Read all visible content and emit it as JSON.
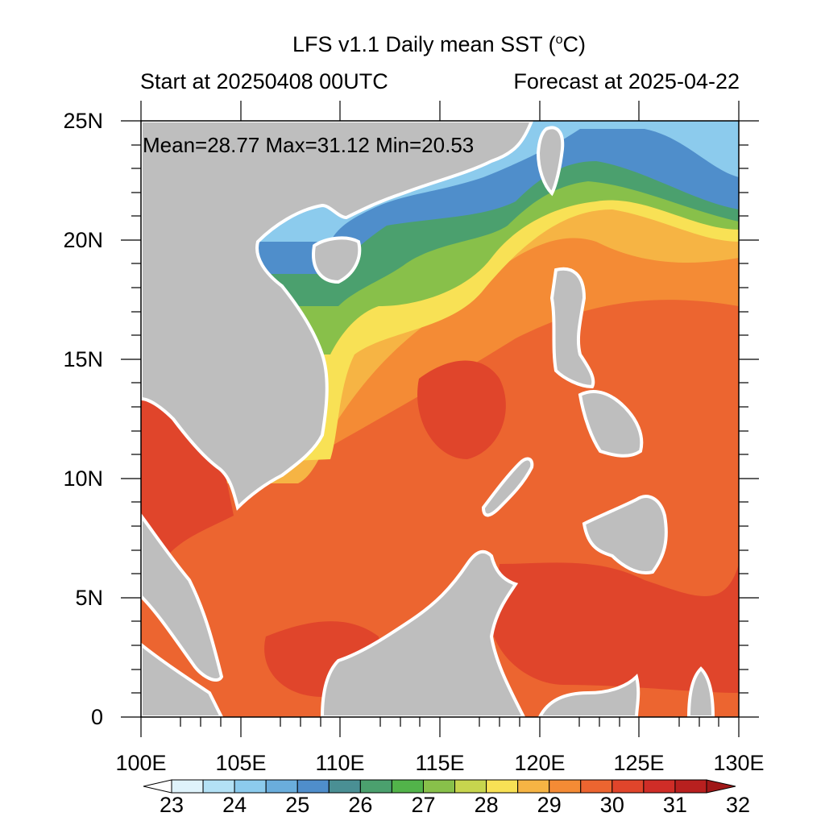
{
  "title_main": "LFS v1.1 Daily mean SST (",
  "title_deg": "o",
  "title_unit": "C)",
  "start_label": "Start at 20250408 00UTC",
  "forecast_label": "Forecast at 2025-04-22",
  "stats": "Mean=28.77  Max=31.12  Min=20.53",
  "lat_labels": [
    "25N",
    "20N",
    "15N",
    "10N",
    "5N",
    "0"
  ],
  "lon_labels": [
    "100E",
    "105E",
    "110E",
    "115E",
    "120E",
    "125E",
    "130E"
  ],
  "colorbar": {
    "labels": [
      "23",
      "24",
      "25",
      "26",
      "27",
      "28",
      "29",
      "30",
      "31",
      "32"
    ],
    "colors": [
      "#ffffff",
      "#dff3fb",
      "#b3e1f5",
      "#8ccbed",
      "#6aaddc",
      "#4f8ecb",
      "#4a8f94",
      "#4ba06e",
      "#52b34a",
      "#88c04a",
      "#c7d54e",
      "#f8e155",
      "#f6b444",
      "#f48b35",
      "#ec6530",
      "#e0452b",
      "#cf2d27",
      "#b8201f",
      "#a01818"
    ]
  },
  "colors": {
    "land": "#bebebe",
    "ocean_warm": "#ec6530"
  }
}
